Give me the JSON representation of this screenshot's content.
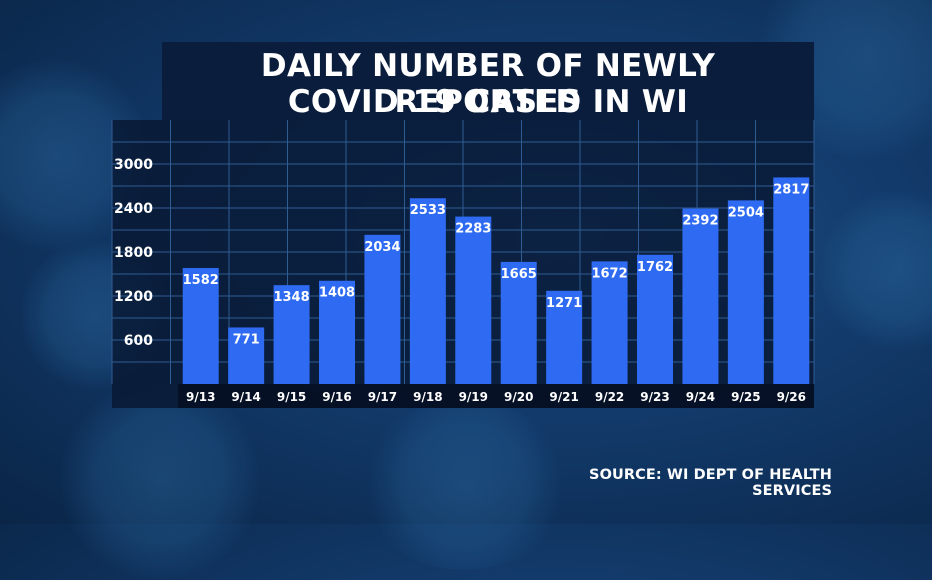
{
  "title_lines": [
    "DAILY NUMBER OF NEWLY REPORTED",
    "COVID-19 CASES IN WI"
  ],
  "source": "SOURCE: WI DEPT OF HEALTH SERVICES",
  "colors": {
    "bar": "#2e6bf2",
    "grid": "#2f5c93",
    "title_bg": "#0b1d3c",
    "text": "#ffffff"
  },
  "chart_data": {
    "type": "bar",
    "title": "DAILY NUMBER OF NEWLY REPORTED COVID-19 CASES IN WI",
    "categories": [
      "9/13",
      "9/14",
      "9/15",
      "9/16",
      "9/17",
      "9/18",
      "9/19",
      "9/20",
      "9/21",
      "9/22",
      "9/23",
      "9/24",
      "9/25",
      "9/26"
    ],
    "values": [
      1582,
      771,
      1348,
      1408,
      2034,
      2533,
      2283,
      1665,
      1271,
      1672,
      1762,
      2392,
      2504,
      2817
    ],
    "yticks": [
      600,
      1200,
      1800,
      2400,
      3000
    ],
    "ylim": [
      0,
      3600
    ],
    "grid": true,
    "data_labels": true,
    "xlabel": "",
    "ylabel": ""
  }
}
